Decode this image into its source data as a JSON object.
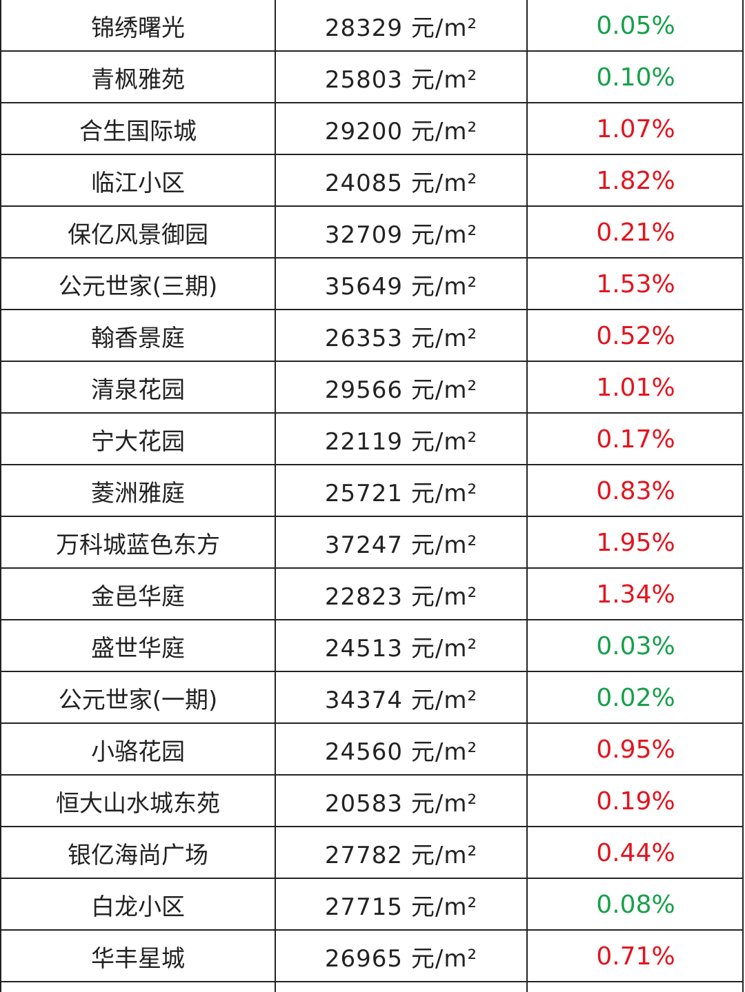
{
  "table": {
    "rows": [
      {
        "name": "锦绣曙光",
        "price": "28329 元/m²",
        "change": "0.05%",
        "color": "#16a04a"
      },
      {
        "name": "青枫雅苑",
        "price": "25803 元/m²",
        "change": "0.10%",
        "color": "#16a04a"
      },
      {
        "name": "合生国际城",
        "price": "29200 元/m²",
        "change": "1.07%",
        "color": "#e3141e"
      },
      {
        "name": "临江小区",
        "price": "24085 元/m²",
        "change": "1.82%",
        "color": "#e3141e"
      },
      {
        "name": "保亿风景御园",
        "price": "32709 元/m²",
        "change": "0.21%",
        "color": "#e3141e"
      },
      {
        "name": "公元世家(三期)",
        "price": "35649 元/m²",
        "change": "1.53%",
        "color": "#e3141e"
      },
      {
        "name": "翰香景庭",
        "price": "26353 元/m²",
        "change": "0.52%",
        "color": "#e3141e"
      },
      {
        "name": "清泉花园",
        "price": "29566 元/m²",
        "change": "1.01%",
        "color": "#e3141e"
      },
      {
        "name": "宁大花园",
        "price": "22119 元/m²",
        "change": "0.17%",
        "color": "#e3141e"
      },
      {
        "name": "菱洲雅庭",
        "price": "25721 元/m²",
        "change": "0.83%",
        "color": "#e3141e"
      },
      {
        "name": "万科城蓝色东方",
        "price": "37247 元/m²",
        "change": "1.95%",
        "color": "#e3141e"
      },
      {
        "name": "金邑华庭",
        "price": "22823 元/m²",
        "change": "1.34%",
        "color": "#e3141e"
      },
      {
        "name": "盛世华庭",
        "price": "24513 元/m²",
        "change": "0.03%",
        "color": "#16a04a"
      },
      {
        "name": "公元世家(一期)",
        "price": "34374 元/m²",
        "change": "0.02%",
        "color": "#16a04a"
      },
      {
        "name": "小骆花园",
        "price": "24560 元/m²",
        "change": "0.95%",
        "color": "#e3141e"
      },
      {
        "name": "恒大山水城东苑",
        "price": "20583 元/m²",
        "change": "0.19%",
        "color": "#e3141e"
      },
      {
        "name": "银亿海尚广场",
        "price": "27782 元/m²",
        "change": "0.44%",
        "color": "#e3141e"
      },
      {
        "name": "白龙小区",
        "price": "27715 元/m²",
        "change": "0.08%",
        "color": "#16a04a"
      },
      {
        "name": "华丰星城",
        "price": "26965 元/m²",
        "change": "0.71%",
        "color": "#e3141e"
      }
    ]
  }
}
